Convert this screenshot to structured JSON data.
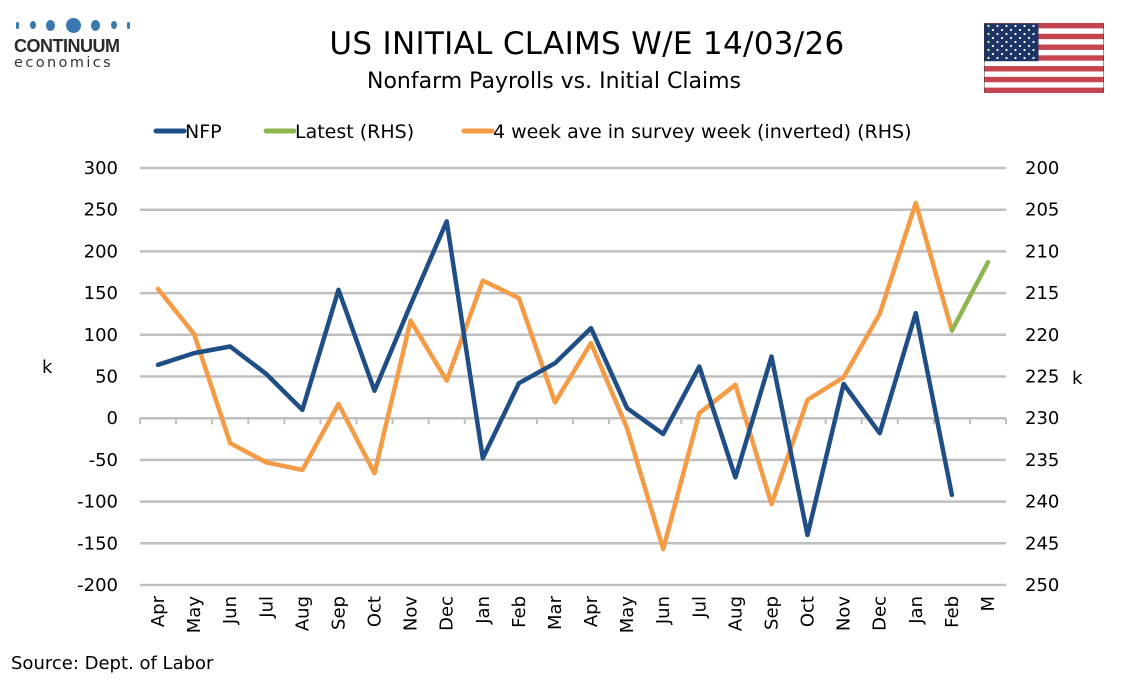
{
  "header": {
    "logo": {
      "name": "CONTINUUM",
      "sub": "economics"
    },
    "title": "US INITIAL CLAIMS W/E 14/03/26",
    "subtitle": "Nonfarm Payrolls vs. Initial Claims",
    "flag_icon": "us-flag-icon"
  },
  "source": "Source: Dept. of Labor",
  "colors": {
    "nfp": "#1f4e86",
    "latest": "#8db651",
    "claims": "#f59a45",
    "grid": "#bfbfbf"
  },
  "chart_data": {
    "type": "line",
    "title": "US INITIAL CLAIMS W/E 14/03/26",
    "subtitle": "Nonfarm Payrolls vs. Initial Claims",
    "xlabel": "",
    "ylabel": "k",
    "y2label": "k",
    "ylim": [
      -200,
      300
    ],
    "y2lim": [
      250,
      200
    ],
    "y2_inverted": true,
    "yticks": [
      "300",
      "250",
      "200",
      "150",
      "100",
      "50",
      "0",
      "-50",
      "-100",
      "-150",
      "-200"
    ],
    "y2ticks": [
      "200",
      "205",
      "210",
      "215",
      "220",
      "225",
      "230",
      "235",
      "240",
      "245",
      "250"
    ],
    "grid": true,
    "legend_position": "top",
    "categories": [
      "Apr",
      "May",
      "Jun",
      "Jul",
      "Aug",
      "Sep",
      "Oct",
      "Nov",
      "Dec",
      "Jan",
      "Feb",
      "Mar",
      "Apr",
      "May",
      "Jun",
      "Jul",
      "Aug",
      "Sep",
      "Oct",
      "Nov",
      "Dec",
      "Jan",
      "Feb",
      "M"
    ],
    "series": [
      {
        "name": "NFP",
        "axis": "left",
        "values": [
          64,
          78,
          86,
          53,
          10,
          154,
          33,
          136,
          236,
          -48,
          42,
          66,
          108,
          12,
          -19,
          62,
          -71,
          74,
          -140,
          41,
          -18,
          126,
          -92,
          null
        ]
      },
      {
        "name": "Latest (RHS)",
        "axis": "right",
        "values": [
          null,
          null,
          null,
          null,
          null,
          null,
          null,
          null,
          null,
          null,
          null,
          null,
          null,
          null,
          null,
          null,
          null,
          null,
          null,
          null,
          null,
          null,
          219.5,
          211.3
        ]
      },
      {
        "name": "4 week ave in survey week (inverted) (RHS)",
        "axis": "right",
        "values": [
          214.5,
          219.9,
          233.0,
          235.3,
          236.2,
          228.3,
          236.6,
          218.3,
          225.5,
          213.5,
          215.6,
          228.1,
          221.0,
          231.2,
          245.7,
          229.4,
          226.0,
          240.3,
          227.8,
          225.1,
          217.5,
          204.2,
          219.5,
          null
        ]
      }
    ]
  }
}
